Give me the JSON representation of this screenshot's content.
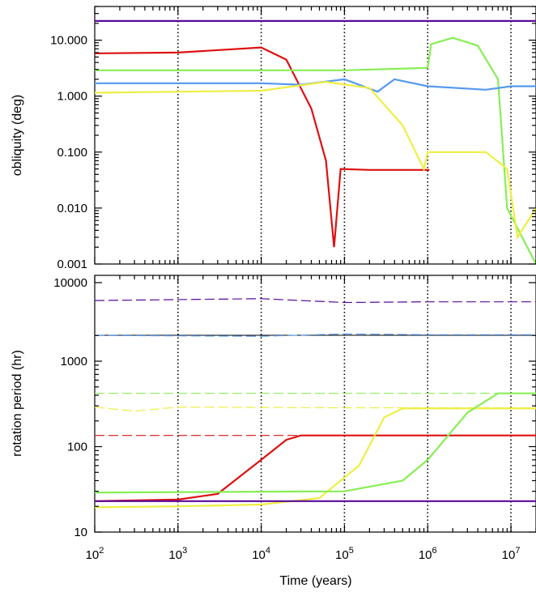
{
  "chart_data": [
    {
      "type": "line",
      "title": "",
      "ylabel": "obliquity (deg)",
      "yscale": "log",
      "xscale": "log",
      "xlim": [
        100,
        20000000
      ],
      "ylim": [
        0.001,
        40
      ],
      "yticks": [
        {
          "value": 0.001,
          "label": "0.001"
        },
        {
          "value": 0.01,
          "label": "0.010"
        },
        {
          "value": 0.1,
          "label": "0.100"
        },
        {
          "value": 1,
          "label": "1.000"
        },
        {
          "value": 10,
          "label": "10.000"
        }
      ],
      "vlines": [
        1000,
        10000,
        100000,
        1000000,
        10000000
      ],
      "series": [
        {
          "color": "#5a0a9a",
          "points": [
            [
              100,
              22
            ],
            [
              1000,
              22
            ],
            [
              100000,
              22
            ],
            [
              1000000,
              22
            ],
            [
              20000000,
              22
            ]
          ]
        },
        {
          "color": "#dd1111",
          "points": [
            [
              100,
              5.8
            ],
            [
              1000,
              6.0
            ],
            [
              10000,
              7.4
            ],
            [
              20000,
              4.5
            ],
            [
              40000,
              0.6
            ],
            [
              60000,
              0.07
            ],
            [
              75000,
              0.002
            ],
            [
              90000,
              0.05
            ],
            [
              200000,
              0.048
            ],
            [
              1000000,
              0.048
            ],
            [
              1050000,
              0.048
            ]
          ]
        },
        {
          "color": "#88ee55",
          "points": [
            [
              100,
              2.9
            ],
            [
              1000,
              2.9
            ],
            [
              100000,
              2.9
            ],
            [
              1000000,
              3.2
            ],
            [
              1100000,
              8.5
            ],
            [
              2000000,
              11
            ],
            [
              4000000,
              8
            ],
            [
              7000000,
              2
            ],
            [
              9000000,
              0.01
            ],
            [
              20000000,
              0.001
            ]
          ]
        },
        {
          "color": "#5599ee",
          "points": [
            [
              100,
              1.7
            ],
            [
              10000,
              1.7
            ],
            [
              30000,
              1.6
            ],
            [
              100000,
              2.0
            ],
            [
              250000,
              1.2
            ],
            [
              400000,
              2.0
            ],
            [
              1000000,
              1.5
            ],
            [
              5000000,
              1.3
            ],
            [
              10000000,
              1.5
            ],
            [
              20000000,
              1.5
            ]
          ]
        },
        {
          "color": "#eeee44",
          "points": [
            [
              100,
              1.15
            ],
            [
              10000,
              1.25
            ],
            [
              60000,
              1.8
            ],
            [
              200000,
              1.4
            ],
            [
              500000,
              0.3
            ],
            [
              900000,
              0.05
            ],
            [
              1000000,
              0.1
            ],
            [
              5000000,
              0.1
            ],
            [
              9000000,
              0.05
            ],
            [
              12000000,
              0.003
            ],
            [
              20000000,
              0.01
            ]
          ]
        }
      ]
    },
    {
      "type": "line",
      "title": "",
      "xlabel": "Time (years)",
      "ylabel": "rotation period (hr)",
      "yscale": "log",
      "xscale": "log",
      "xlim": [
        100,
        20000000
      ],
      "ylim_lower": [
        10,
        2000
      ],
      "yticks_lower": [
        {
          "value": 10,
          "label": "10"
        },
        {
          "value": 100,
          "label": "100"
        },
        {
          "value": 1000,
          "label": "1000"
        }
      ],
      "ytick_upper": {
        "value": 10000,
        "label": "10000"
      },
      "xticks": [
        {
          "value": 100,
          "base": "10",
          "exp": "2"
        },
        {
          "value": 1000,
          "base": "10",
          "exp": "3"
        },
        {
          "value": 10000,
          "base": "10",
          "exp": "4"
        },
        {
          "value": 100000,
          "base": "10",
          "exp": "5"
        },
        {
          "value": 1000000,
          "base": "10",
          "exp": "6"
        },
        {
          "value": 10000000,
          "base": "10",
          "exp": "7"
        }
      ],
      "vlines": [
        1000,
        10000,
        100000,
        1000000,
        10000000
      ],
      "series": [
        {
          "color": "#5a0a9a",
          "style": "dashed",
          "panel": "upper",
          "values": "~6500",
          "points": [
            [
              100,
              6500
            ],
            [
              10000,
              6800
            ],
            [
              30000,
              6500
            ],
            [
              100000,
              6200
            ],
            [
              1000000,
              6300
            ],
            [
              20000000,
              6300
            ]
          ]
        },
        {
          "color": "#5599ee",
          "style": "dashed",
          "panel": "upper",
          "values": "~2800",
          "points": [
            [
              100,
              2800
            ],
            [
              10000,
              2750
            ],
            [
              100000,
              2900
            ],
            [
              1000000,
              2850
            ],
            [
              20000000,
              2850
            ]
          ]
        },
        {
          "color": "#88ee55",
          "style": "dashed",
          "panel": "lower",
          "points": [
            [
              100,
              420
            ],
            [
              20000000,
              420
            ]
          ]
        },
        {
          "color": "#eeee44",
          "style": "dashed",
          "panel": "lower",
          "points": [
            [
              100,
              290
            ],
            [
              300,
              260
            ],
            [
              1000,
              290
            ],
            [
              100000,
              285
            ],
            [
              20000000,
              285
            ]
          ]
        },
        {
          "color": "#dd1111",
          "style": "dashed",
          "panel": "lower",
          "points": [
            [
              100,
              135
            ],
            [
              10000,
              135
            ],
            [
              100000,
              135
            ]
          ]
        },
        {
          "color": "#dd1111",
          "style": "solid",
          "panel": "lower",
          "points": [
            [
              100,
              23
            ],
            [
              1000,
              24
            ],
            [
              3000,
              28
            ],
            [
              10000,
              70
            ],
            [
              20000,
              120
            ],
            [
              30000,
              135
            ],
            [
              20000000,
              135
            ]
          ]
        },
        {
          "color": "#eeee44",
          "style": "solid",
          "panel": "lower",
          "points": [
            [
              100,
              19.5
            ],
            [
              1000,
              20
            ],
            [
              10000,
              21
            ],
            [
              50000,
              25
            ],
            [
              150000,
              60
            ],
            [
              300000,
              220
            ],
            [
              500000,
              280
            ],
            [
              20000000,
              280
            ]
          ]
        },
        {
          "color": "#88ee55",
          "style": "solid",
          "panel": "lower",
          "points": [
            [
              100,
              29
            ],
            [
              100000,
              30
            ],
            [
              500000,
              40
            ],
            [
              1000000,
              70
            ],
            [
              3000000,
              250
            ],
            [
              7000000,
              420
            ],
            [
              20000000,
              420
            ]
          ]
        },
        {
          "color": "#5a0a9a",
          "style": "solid",
          "panel": "lower",
          "points": [
            [
              100,
              23
            ],
            [
              20000000,
              23
            ]
          ]
        }
      ]
    }
  ]
}
